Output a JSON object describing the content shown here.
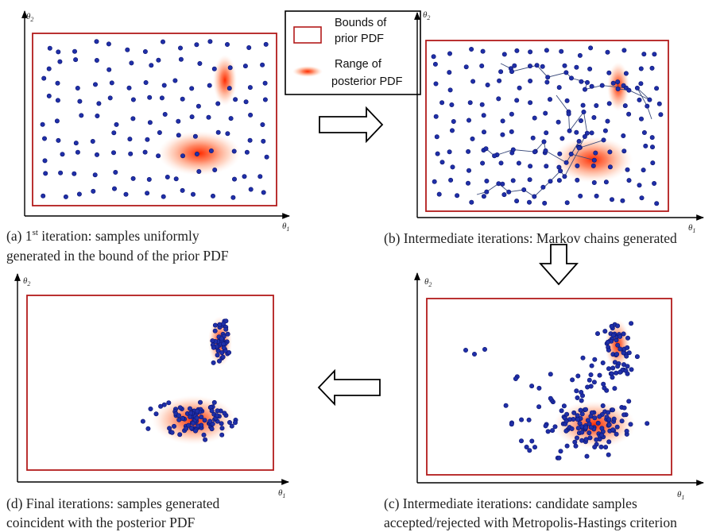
{
  "colors": {
    "sample": "#1f2fa8",
    "sample_dark": "#0c1470",
    "bound": "#b31b1b",
    "posterior": "#ff3d14",
    "chain": "#3a4a7a",
    "axis": "#000000"
  },
  "legend": {
    "bounds_line1": "Bounds of",
    "bounds_line2": "prior PDF",
    "posterior_line1": "Range of",
    "posterior_line2": "posterior PDF"
  },
  "panels": [
    {
      "id": "a",
      "ylabel": "θ",
      "ysub": "2",
      "xlabel": "θ",
      "xsub": "1",
      "caption_line1_prefix": "(a) 1",
      "caption_line1_sup": "st",
      "caption_line1_rest": " iteration: samples uniformly",
      "caption_line2": "generated in the bound of the prior PDF"
    },
    {
      "id": "b",
      "ylabel": "θ",
      "ysub": "2",
      "xlabel": "θ",
      "xsub": "1",
      "caption_line1": "(b) Intermediate iterations: Markov chains generated"
    },
    {
      "id": "c",
      "ylabel": "θ",
      "ysub": "2",
      "xlabel": "θ",
      "xsub": "1",
      "caption_line1": "(c) Intermediate iterations: candidate samples",
      "caption_line2": "accepted/rejected with Metropolis-Hastings criterion"
    },
    {
      "id": "d",
      "ylabel": "θ",
      "ysub": "2",
      "xlabel": "θ",
      "xsub": "1",
      "caption_line1": "(d) Final iterations: samples generated",
      "caption_line2": "coincident with the posterior PDF"
    }
  ],
  "flow_arrows": [
    "right",
    "down",
    "left"
  ]
}
